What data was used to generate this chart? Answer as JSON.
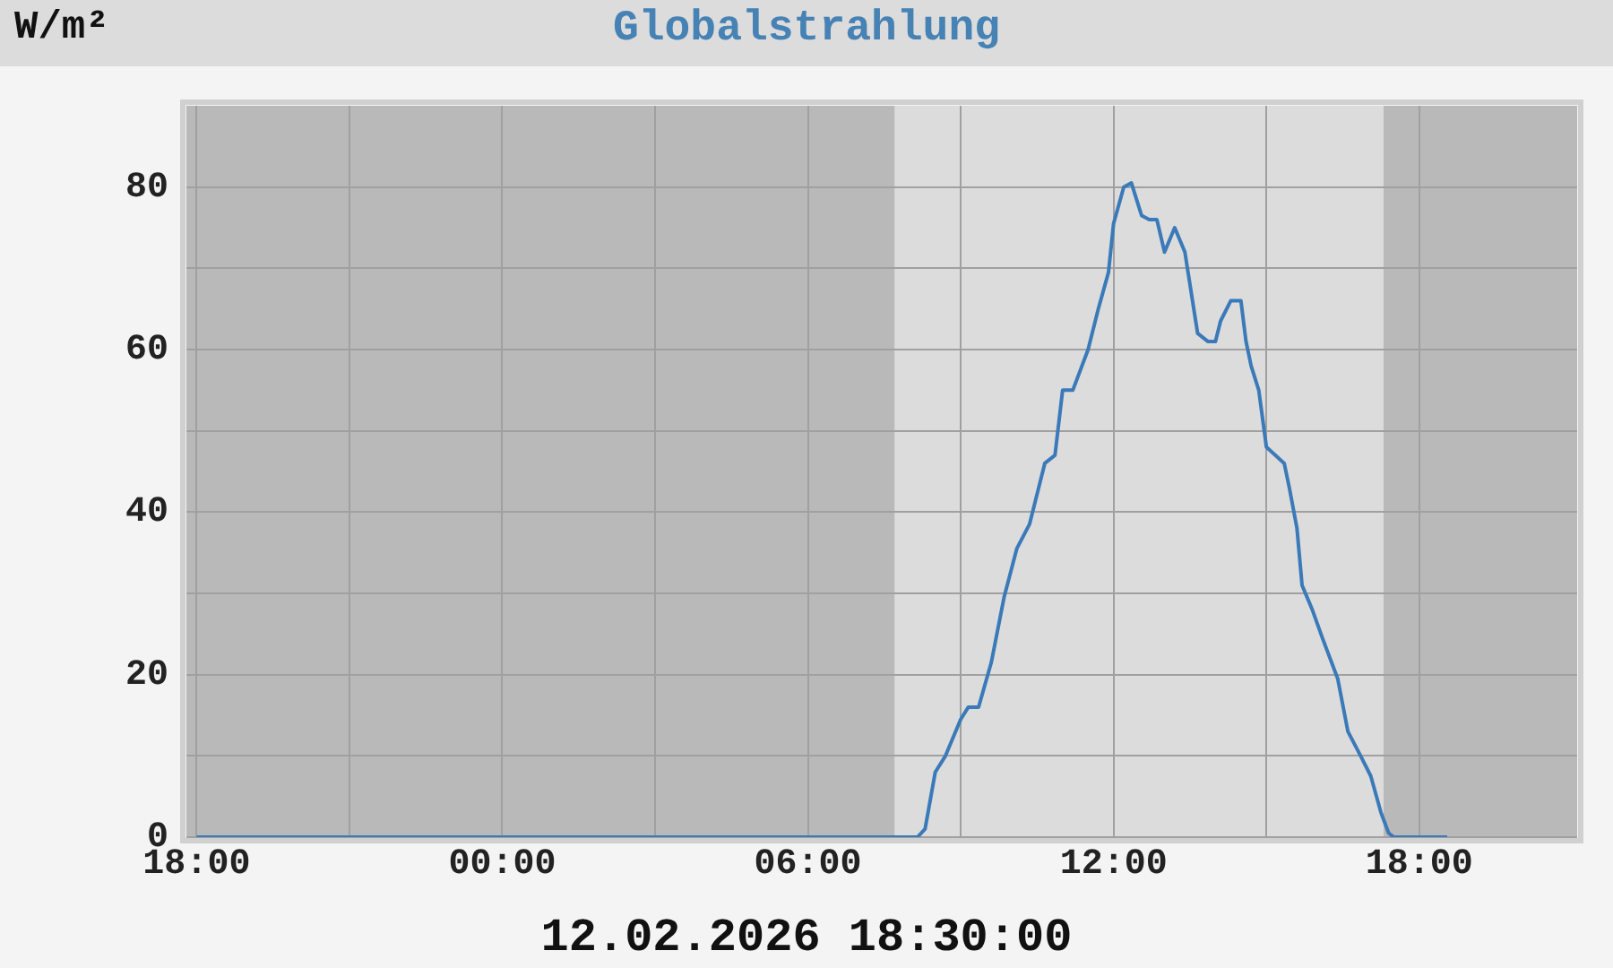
{
  "chart_data": {
    "type": "line",
    "title": "Globalstrahlung",
    "ylabel": "W/m²",
    "annotations": [
      "12.02.2026 18:30:00"
    ],
    "x": [
      "2026-02-11T18:00",
      "2026-02-12T08:09",
      "2026-02-12T08:18",
      "2026-02-12T08:30",
      "2026-02-12T08:42",
      "2026-02-12T09:00",
      "2026-02-12T09:09",
      "2026-02-12T09:21",
      "2026-02-12T09:36",
      "2026-02-12T09:51",
      "2026-02-12T10:06",
      "2026-02-12T10:21",
      "2026-02-12T10:39",
      "2026-02-12T10:51",
      "2026-02-12T11:00",
      "2026-02-12T11:12",
      "2026-02-12T11:30",
      "2026-02-12T11:42",
      "2026-02-12T11:54",
      "2026-02-12T12:00",
      "2026-02-12T12:12",
      "2026-02-12T12:21",
      "2026-02-12T12:33",
      "2026-02-12T12:42",
      "2026-02-12T12:51",
      "2026-02-12T13:00",
      "2026-02-12T13:12",
      "2026-02-12T13:24",
      "2026-02-12T13:39",
      "2026-02-12T13:51",
      "2026-02-12T14:00",
      "2026-02-12T14:06",
      "2026-02-12T14:18",
      "2026-02-12T14:30",
      "2026-02-12T14:36",
      "2026-02-12T14:42",
      "2026-02-12T14:51",
      "2026-02-12T15:00",
      "2026-02-12T15:21",
      "2026-02-12T15:27",
      "2026-02-12T15:36",
      "2026-02-12T15:42",
      "2026-02-12T15:54",
      "2026-02-12T16:06",
      "2026-02-12T16:24",
      "2026-02-12T16:36",
      "2026-02-12T16:51",
      "2026-02-12T17:03",
      "2026-02-12T17:15",
      "2026-02-12T17:24",
      "2026-02-12T17:30",
      "2026-02-12T18:33"
    ],
    "series": [
      {
        "color": "#3a7ab8",
        "values": [
          0,
          0,
          1,
          8,
          10,
          14.5,
          16,
          16,
          21.5,
          29.5,
          35.5,
          38.5,
          46,
          47,
          55,
          55,
          60,
          65,
          69.5,
          75.5,
          80,
          80.5,
          76.5,
          76,
          76,
          72,
          75,
          72,
          62,
          61,
          61,
          63.5,
          66,
          66,
          61,
          58,
          55,
          48,
          46,
          43,
          38,
          31,
          28,
          24.5,
          19.5,
          13,
          10,
          7.5,
          3,
          0.5,
          0,
          0
        ]
      }
    ],
    "xlim": [
      "2026-02-11T17:48",
      "2026-02-12T21:06"
    ],
    "ylim": [
      0,
      90
    ],
    "xticks": [
      {
        "value": "2026-02-11T18:00",
        "label": "18:00"
      },
      {
        "value": "2026-02-11T21:00",
        "label": null
      },
      {
        "value": "2026-02-12T00:00",
        "label": "00:00"
      },
      {
        "value": "2026-02-12T03:00",
        "label": null
      },
      {
        "value": "2026-02-12T06:00",
        "label": "06:00"
      },
      {
        "value": "2026-02-12T09:00",
        "label": null
      },
      {
        "value": "2026-02-12T12:00",
        "label": "12:00"
      },
      {
        "value": "2026-02-12T15:00",
        "label": null
      },
      {
        "value": "2026-02-12T18:00",
        "label": "18:00"
      }
    ],
    "yticks": [
      0,
      {
        "value": 10,
        "label": null
      },
      20,
      {
        "value": 30,
        "label": null
      },
      40,
      {
        "value": 50,
        "label": null
      },
      60,
      {
        "value": 70,
        "label": null
      },
      80
    ],
    "bands": [
      {
        "axis": "x",
        "from": "2026-02-11T17:48",
        "to": "2026-02-12T07:42",
        "color": "#b9b9b9"
      },
      {
        "axis": "x",
        "from": "2026-02-12T17:18",
        "to": "2026-02-12T21:06",
        "color": "#b9b9b9"
      }
    ],
    "grid": true,
    "legend": false,
    "marker": "none",
    "line_style": "solid"
  }
}
